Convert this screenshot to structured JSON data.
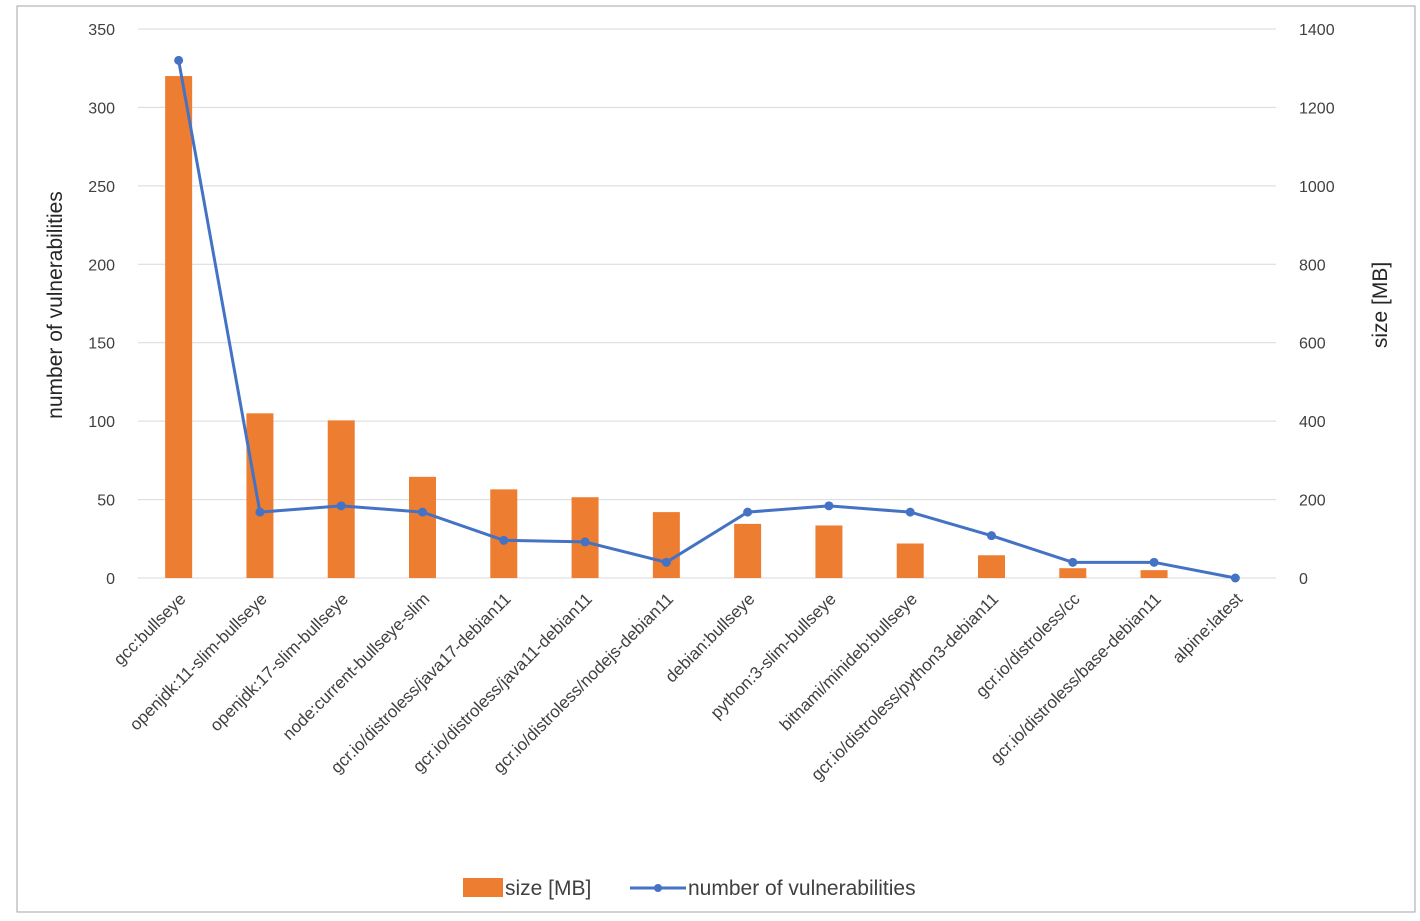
{
  "chart_data": {
    "type": "bar+line",
    "categories": [
      "gcc:bullseye",
      "openjdk:11-slim-bullseye",
      "openjdk:17-slim-bullseye",
      "node:current-bullseye-slim",
      "gcr.io/distroless/java17-debian11",
      "gcr.io/distroless/java11-debian11",
      "gcr.io/distroless/nodejs-debian11",
      "debian:bullseye",
      "python:3-slim-bullseye",
      "bitnami/minideb:bullseye",
      "gcr.io/distroless/python3-debian11",
      "gcr.io/distroless/cc",
      "gcr.io/distroless/base-debian11",
      "alpine:latest"
    ],
    "series": [
      {
        "name": "size [MB]",
        "type": "bar",
        "axis": "right",
        "color": "#ed7d31",
        "values": [
          1280,
          420,
          402,
          258,
          226,
          206,
          168,
          138,
          134,
          88,
          58,
          25,
          20,
          0
        ]
      },
      {
        "name": "number of vulnerabilities",
        "type": "line",
        "axis": "left",
        "color": "#4472c4",
        "values": [
          330,
          42,
          46,
          42,
          24,
          23,
          10,
          42,
          46,
          42,
          27,
          10,
          10,
          0
        ]
      }
    ],
    "ylabel": "number of vulnerabilities",
    "ylabel_right": "size [MB]",
    "ylim": [
      0,
      350
    ],
    "ylim_right": [
      0,
      1400
    ],
    "yticks": [
      "0",
      "50",
      "100",
      "150",
      "200",
      "250",
      "300",
      "350"
    ],
    "yticks_right": [
      "0",
      "200",
      "400",
      "600",
      "800",
      "1000",
      "1200",
      "1400"
    ],
    "grid": true,
    "legend_position": "bottom"
  }
}
